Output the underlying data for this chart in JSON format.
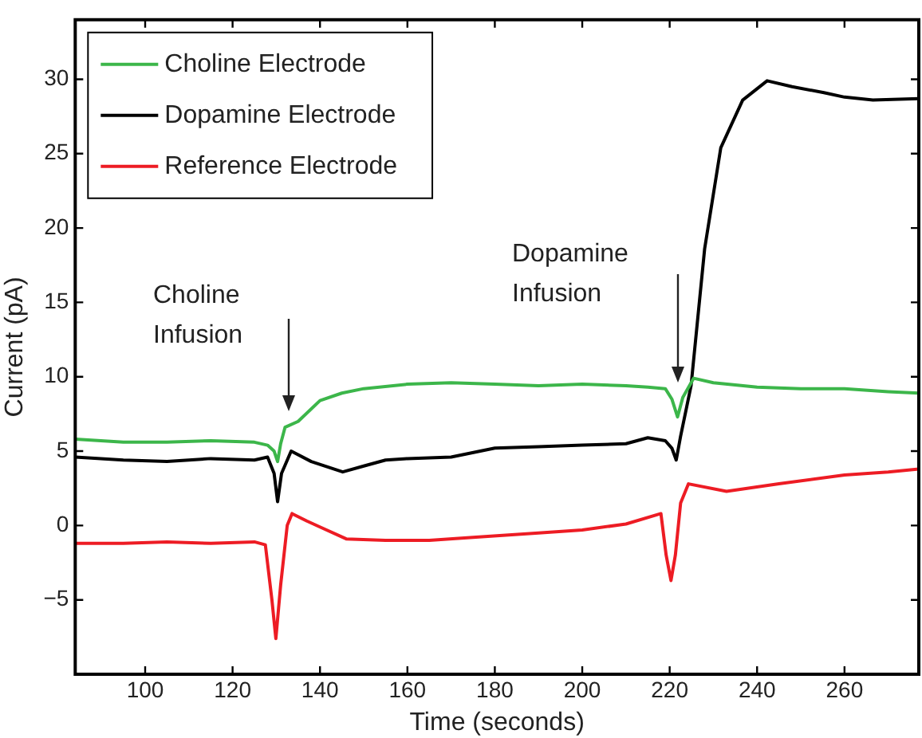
{
  "chart_data": {
    "type": "line",
    "xlabel": "Time (seconds)",
    "ylabel": "Current (pA)",
    "xlim": [
      84,
      277
    ],
    "xticks": [
      100,
      120,
      140,
      160,
      180,
      200,
      220,
      240,
      260
    ],
    "ylim": [
      -10,
      34
    ],
    "yticks": [
      -5,
      0,
      5,
      10,
      15,
      20,
      25,
      30
    ],
    "legend": "top left",
    "marker": "none",
    "line_style": "solid",
    "annotations": [
      "Choline Infusion",
      "Dopamine Infusion"
    ],
    "series": [
      {
        "name": "Choline Electrode",
        "color": "#3cb64a",
        "x": [
          84,
          95,
          105,
          115,
          125,
          128,
          129.5,
          130.3,
          131,
          132,
          135,
          140,
          145,
          150,
          160,
          170,
          180,
          190,
          200,
          210,
          215,
          219,
          220.5,
          221.8,
          223,
          225.5,
          230,
          240,
          250,
          260,
          270,
          277
        ],
        "values": [
          5.8,
          5.6,
          5.6,
          5.7,
          5.6,
          5.4,
          5.0,
          4.3,
          5.5,
          6.6,
          7.0,
          8.4,
          8.9,
          9.2,
          9.5,
          9.6,
          9.5,
          9.4,
          9.5,
          9.4,
          9.3,
          9.2,
          8.5,
          7.3,
          8.6,
          9.9,
          9.6,
          9.3,
          9.2,
          9.2,
          9.0,
          8.9
        ]
      },
      {
        "name": "Dopamine Electrode",
        "color": "#000000",
        "x": [
          84,
          95,
          105,
          110,
          115,
          125,
          128,
          129.5,
          130.3,
          131.2,
          133.4,
          138,
          145.2,
          150,
          155,
          160,
          170,
          180,
          190,
          200,
          210,
          215,
          219,
          220.5,
          221.5,
          222.5,
          224.9,
          228,
          231.7,
          236.7,
          242.3,
          248,
          255.3,
          260,
          266.5,
          277
        ],
        "values": [
          4.6,
          4.4,
          4.3,
          4.4,
          4.5,
          4.4,
          4.6,
          3.5,
          1.6,
          3.5,
          5.0,
          4.3,
          3.6,
          4.0,
          4.4,
          4.5,
          4.6,
          5.2,
          5.3,
          5.4,
          5.5,
          5.9,
          5.7,
          5.2,
          4.4,
          6.0,
          9.4,
          18.6,
          25.4,
          28.6,
          29.9,
          29.5,
          29.1,
          28.8,
          28.6,
          28.7
        ]
      },
      {
        "name": "Reference Electrode",
        "color": "#ed1c24",
        "x": [
          84,
          95,
          105,
          115,
          125,
          127.5,
          129,
          129.9,
          131,
          132.5,
          133.6,
          137,
          140,
          146,
          155,
          165,
          175,
          190,
          200,
          210,
          218,
          219.2,
          220.3,
          221.3,
          222.5,
          224.3,
          233,
          245,
          260,
          270,
          277
        ],
        "values": [
          -1.2,
          -1.2,
          -1.1,
          -1.2,
          -1.1,
          -1.3,
          -5.0,
          -7.6,
          -4.0,
          0.0,
          0.8,
          0.3,
          -0.1,
          -0.9,
          -1.0,
          -1.0,
          -0.8,
          -0.5,
          -0.3,
          0.1,
          0.8,
          -2.0,
          -3.7,
          -2.0,
          1.5,
          2.8,
          2.3,
          2.8,
          3.4,
          3.6,
          3.8
        ]
      }
    ]
  }
}
